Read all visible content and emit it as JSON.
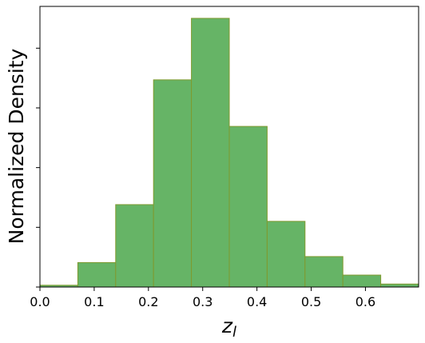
{
  "chart_data": {
    "type": "histogram",
    "x_label": "z",
    "x_label_subscript": "l",
    "y_label": "Normalized Density",
    "bins": [
      0,
      0.0698,
      0.1396,
      0.2094,
      0.2792,
      0.349,
      0.4188,
      0.4886,
      0.5584,
      0.6282,
      0.698
    ],
    "values": [
      0.03,
      0.41,
      1.38,
      3.47,
      4.5,
      2.69,
      1.1,
      0.51,
      0.2,
      0.05
    ],
    "color": "#66b466",
    "edge_color": "#7f9a2e",
    "xlim": [
      0,
      0.698
    ],
    "ylim": [
      0,
      4.7
    ],
    "xticks": [
      {
        "value": 0,
        "label": "0.0"
      },
      0.1,
      0.2,
      0.3,
      0.4,
      0.5,
      0.6
    ],
    "yticks": [
      0,
      1,
      2,
      3,
      4
    ],
    "grid": false
  }
}
